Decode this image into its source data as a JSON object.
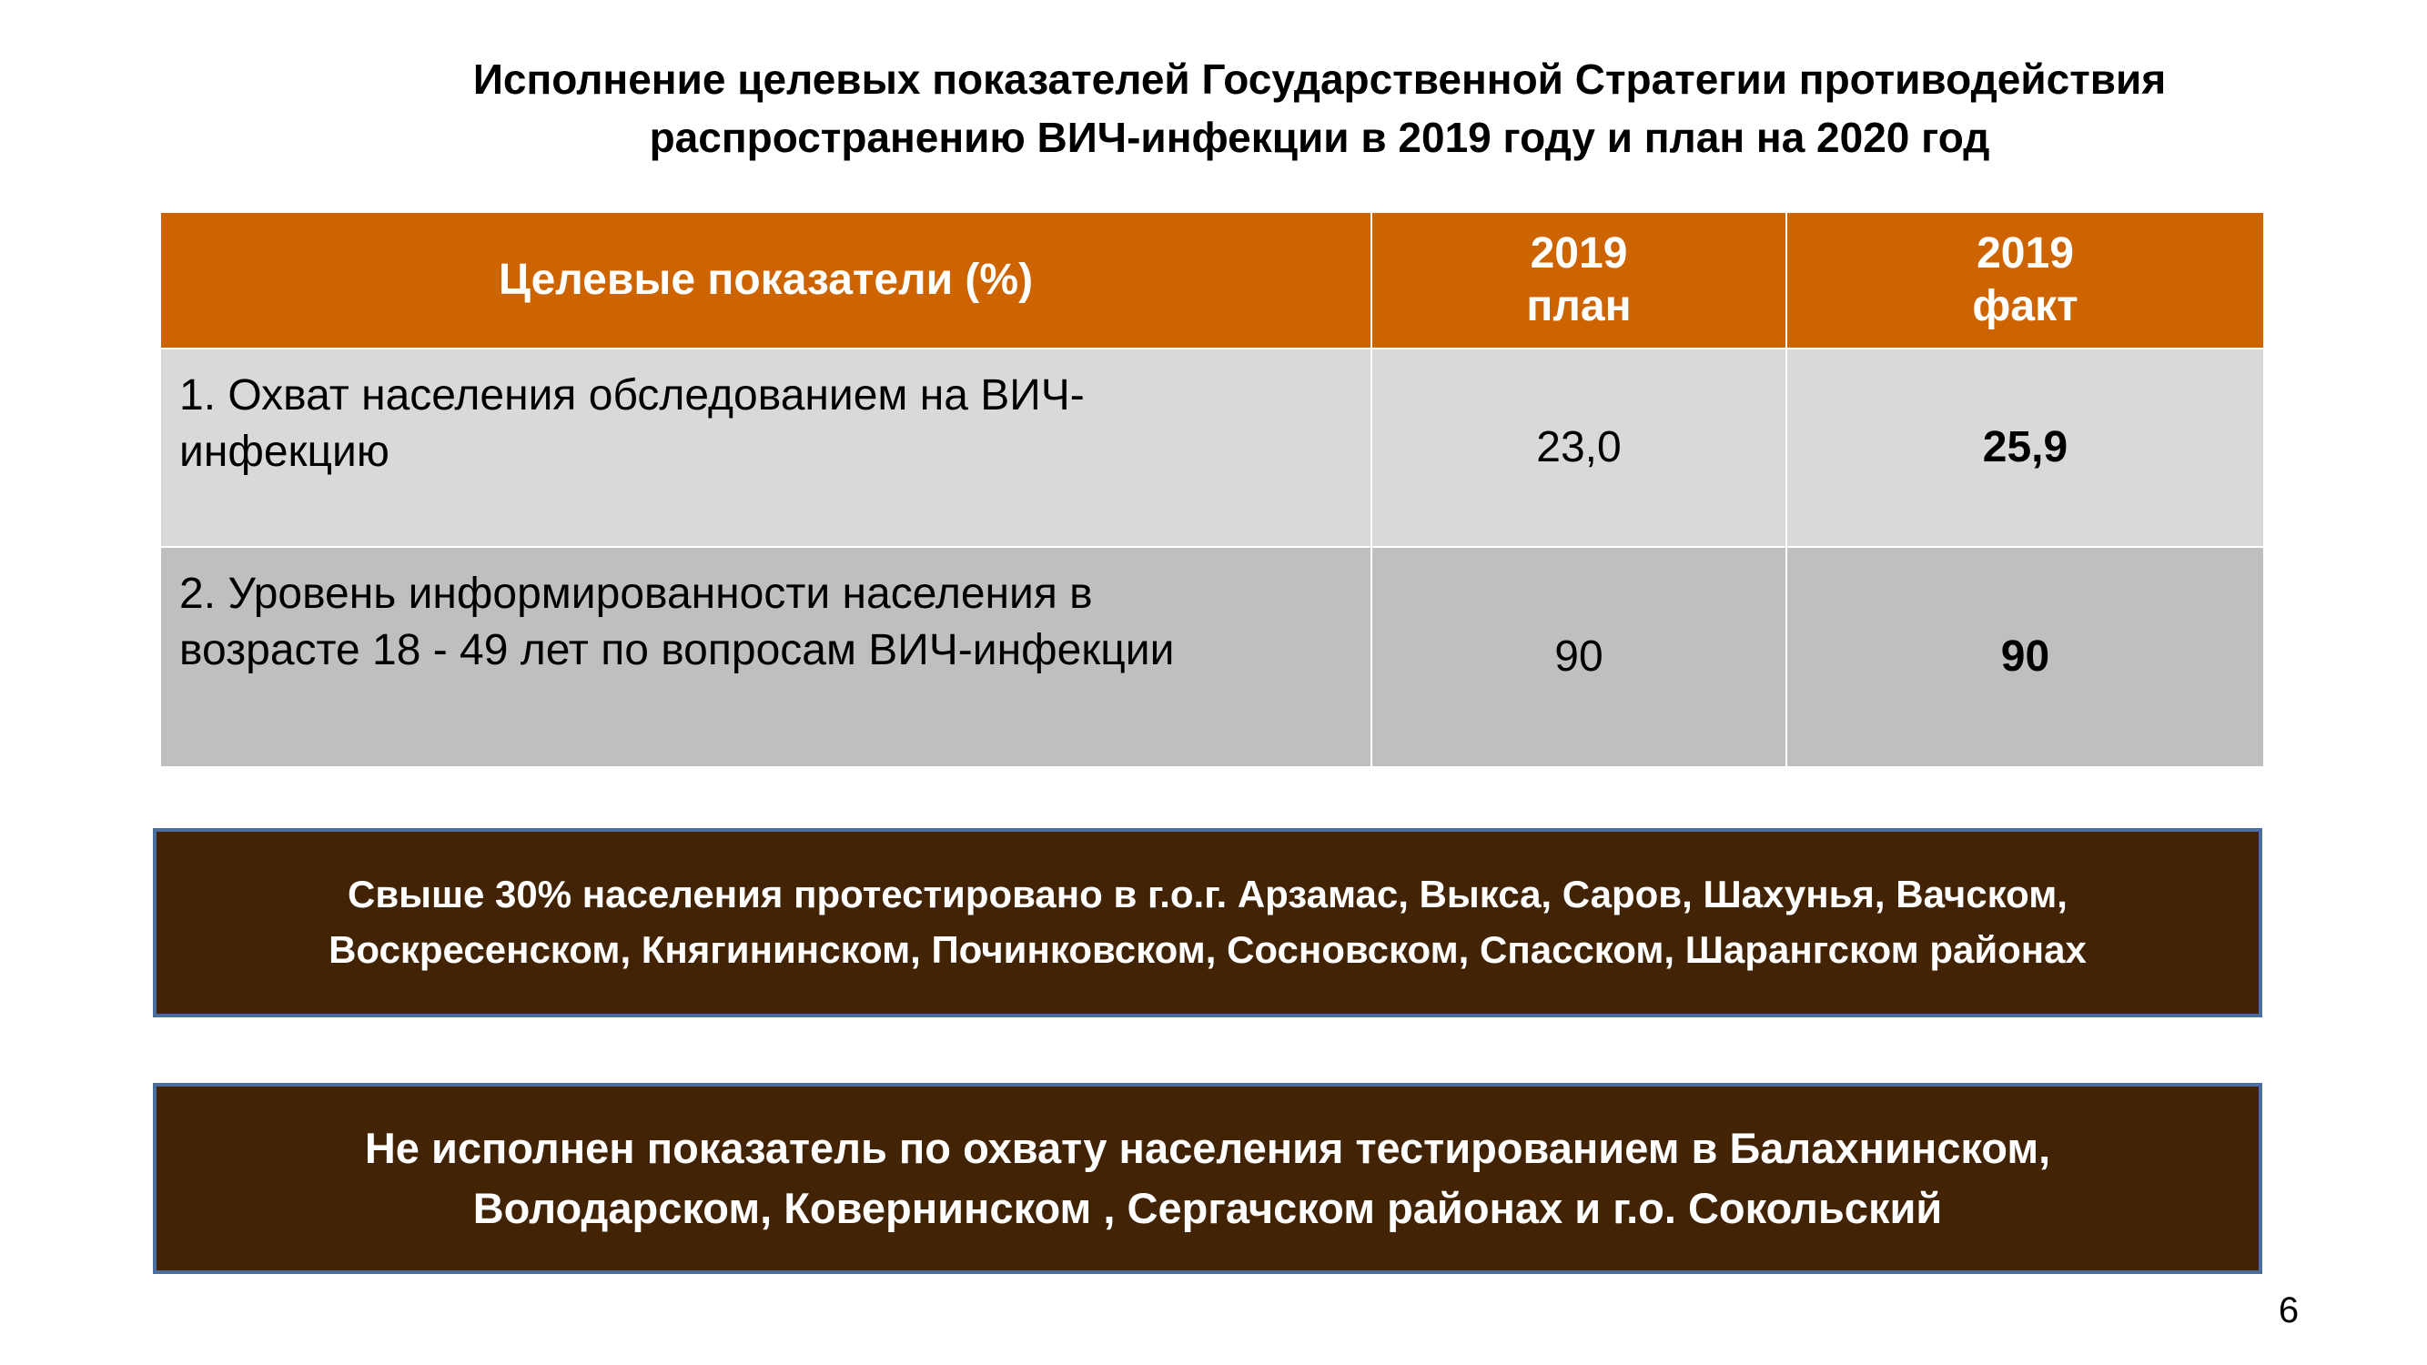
{
  "title": {
    "line1": "Исполнение целевых показателей Государственной Стратегии противодействия",
    "line2": "распространению ВИЧ-инфекции  в 2019 году и план на 2020 год"
  },
  "table": {
    "headers": [
      {
        "label": "Целевые показатели (%)"
      },
      {
        "line1": "2019",
        "line2": "план"
      },
      {
        "line1": "2019",
        "line2": "факт"
      }
    ],
    "rows": [
      {
        "label_line1": "1. Охват населения обследованием на  ВИЧ-",
        "label_line2": "инфекцию",
        "plan": "23,0",
        "fact": "25,9"
      },
      {
        "label_line1": "2. Уровень информированности населения в",
        "label_line2": "возрасте 18 - 49 лет по вопросам ВИЧ-инфекции",
        "plan": "90",
        "fact": "90"
      }
    ]
  },
  "notes": [
    {
      "line1": "Свыше 30% населения протестировано в г.о.г. Арзамас, Выкса, Саров, Шахунья, Вачском,",
      "line2": "Воскресенском, Княгининском, Починковском, Сосновском, Спасском, Шарангском  районах"
    },
    {
      "line1": "Не  исполнен показатель по охвату населения тестированием в Балахнинском,",
      "line2": "Володарском, Ковернинском , Сергачском районах и г.о. Сокольский"
    }
  ],
  "page_number": "6",
  "colors": {
    "header_bg": "#cd6400",
    "row1_bg": "#d9d9d9",
    "row2_bg": "#bfbfbf",
    "note_bg": "#422405",
    "note_border": "#4a6ea0"
  }
}
